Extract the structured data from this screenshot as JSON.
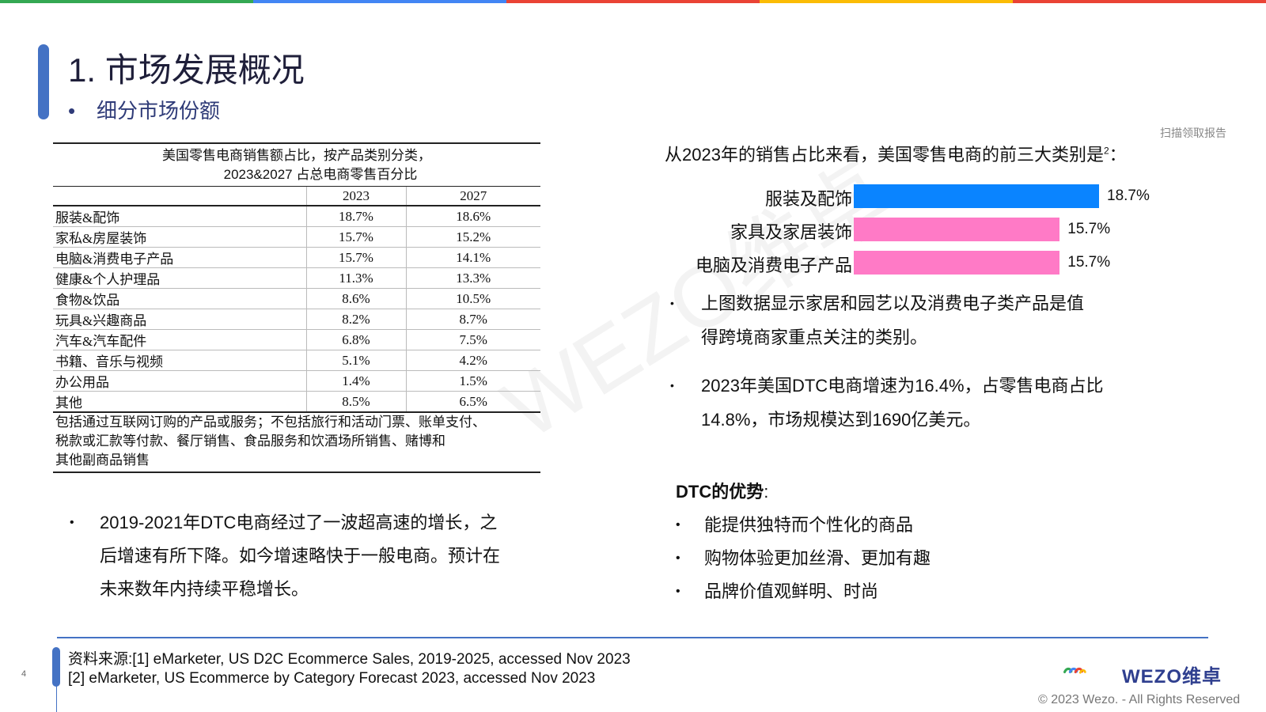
{
  "colors": {
    "bar_blue": "#0a84ff",
    "bar_pink": "#ff7ac6",
    "accent": "#4472c4",
    "top_bar": [
      "#34a853",
      "#4285f4",
      "#ea4335",
      "#fbbc05",
      "#ea4335"
    ]
  },
  "page": {
    "title": "1. 市场发展概况",
    "subtitle_bullet": "•",
    "subtitle": "细分市场份额",
    "scan_link": "扫描领取报告",
    "page_number": "4"
  },
  "table": {
    "caption_line1": "美国零售电商销售额占比，按产品类别分类，",
    "caption_line2": "2023&2027 占总电商零售百分比",
    "headers": [
      "",
      "2023",
      "2027"
    ],
    "rows": [
      [
        "服装&配饰",
        "18.7%",
        "18.6%"
      ],
      [
        "家私&房屋装饰",
        "15.7%",
        "15.2%"
      ],
      [
        "电脑&消费电子产品",
        "15.7%",
        "14.1%"
      ],
      [
        "健康&个人护理品",
        "11.3%",
        "13.3%"
      ],
      [
        "食物&饮品",
        "8.6%",
        "10.5%"
      ],
      [
        "玩具&兴趣商品",
        "8.2%",
        "8.7%"
      ],
      [
        "汽车&汽车配件",
        "6.8%",
        "7.5%"
      ],
      [
        "书籍、音乐与视频",
        "5.1%",
        "4.2%"
      ],
      [
        "办公用品",
        "1.4%",
        "1.5%"
      ],
      [
        "其他",
        "8.5%",
        "6.5%"
      ]
    ],
    "note_lines": [
      "包括通过互联网订购的产品或服务；不包括旅行和活动门票、账单支付、",
      "税款或汇款等付款、餐厅销售、食品服务和饮酒场所销售、赌博和",
      "其他副商品销售"
    ]
  },
  "chart_intro": "从2023年的销售占比来看，美国零售电商的前三大类别是",
  "chart_intro_sup": "2",
  "chart_intro_end": "：",
  "chart_data": {
    "type": "bar",
    "orientation": "horizontal",
    "categories": [
      "服装及配饰",
      "家具及家居装饰",
      "电脑及消费电子产品"
    ],
    "values": [
      18.7,
      15.7,
      15.7
    ],
    "value_labels": [
      "18.7%",
      "15.7%",
      "15.7%"
    ],
    "colors": [
      "#0a84ff",
      "#ff7ac6",
      "#ff7ac6"
    ],
    "xlim": [
      0,
      18.7
    ]
  },
  "right_bullets": [
    {
      "dot": "•",
      "lines": [
        "上图数据显示家居和园艺以及消费电子类产品是值",
        "得跨境商家重点关注的类别。"
      ]
    },
    {
      "dot": "•",
      "lines": [
        "2023年美国DTC电商增速为16.4%，占零售电商占比",
        "14.8%，市场规模达到1690亿美元。"
      ]
    }
  ],
  "dtc": {
    "title": "DTC的优势",
    "title_suffix": ":",
    "items": [
      "能提供独特而个性化的商品",
      "购物体验更加丝滑、更加有趣",
      "品牌价值观鲜明、时尚"
    ],
    "dot": "•"
  },
  "left_bullet": {
    "dot": "•",
    "lines": [
      "2019-2021年DTC电商经过了一波超高速的增长，之",
      "后增速有所下降。如今增速略快于一般电商。预计在",
      "未来数年内持续平稳增长。"
    ]
  },
  "watermark": "WEZO维卓",
  "sources": [
    "资料来源:[1] eMarketer, US D2C Ecommerce Sales, 2019-2025, accessed Nov 2023",
    "[2] eMarketer, US Ecommerce by Category Forecast 2023, accessed Nov 2023"
  ],
  "logo_text": "WEZO维卓",
  "copyright": "© 2023 Wezo. - All Rights Reserved"
}
